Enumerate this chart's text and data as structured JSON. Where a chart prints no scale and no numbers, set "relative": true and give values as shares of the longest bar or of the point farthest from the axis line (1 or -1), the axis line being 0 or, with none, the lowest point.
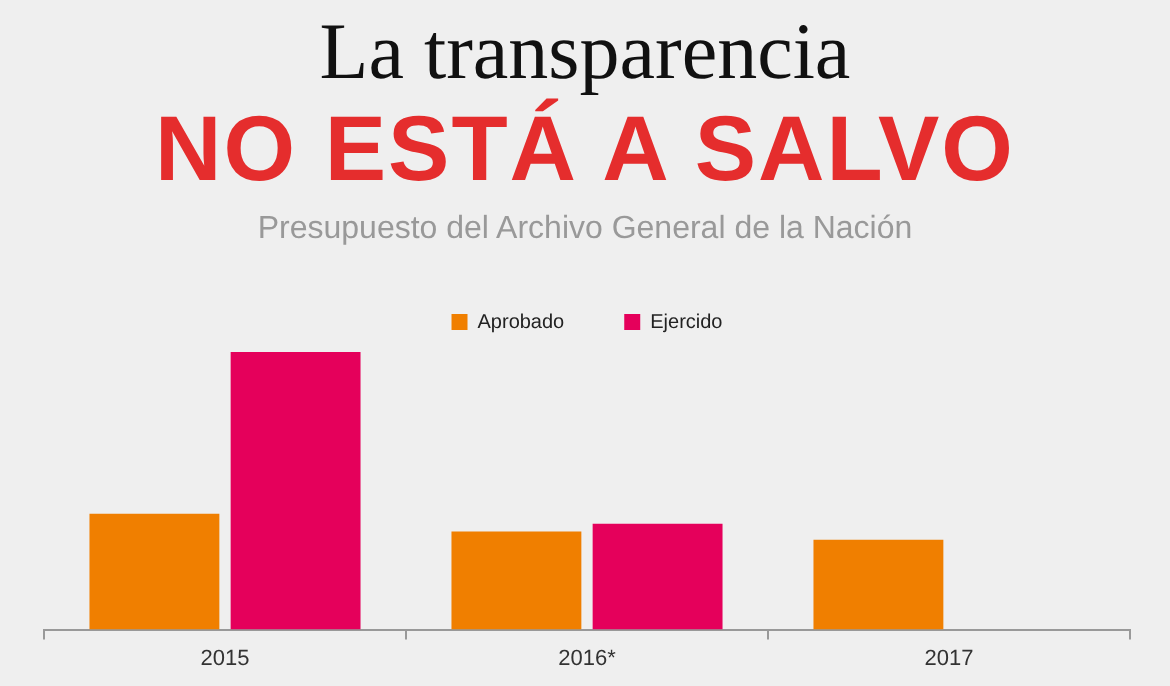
{
  "chart_data": {
    "type": "bar",
    "title": "La transparencia",
    "subtitle": "NO ESTÁ A SALVO",
    "annotations": [
      "Presupuesto del Archivo General de la Nación"
    ],
    "relative": true,
    "categories": [
      "2015",
      "2016*",
      "2017"
    ],
    "series": [
      {
        "name": "Aprobado",
        "color": "#f07f00",
        "values": [
          0.417,
          0.353,
          0.324
        ]
      },
      {
        "name": "Ejercido",
        "color": "#e5005b",
        "values": [
          1,
          0.381,
          null
        ]
      }
    ],
    "legend": "top",
    "grid": false
  }
}
